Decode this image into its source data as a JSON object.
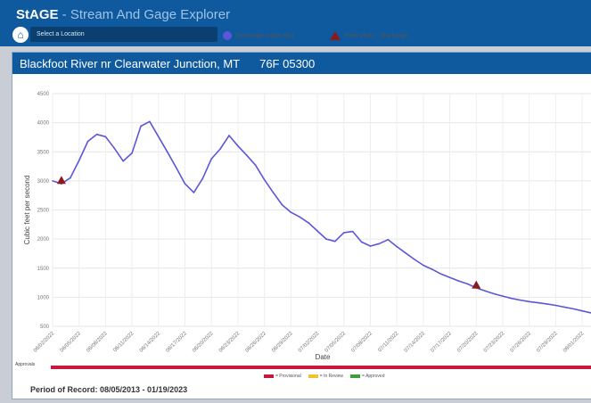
{
  "app": {
    "brand_strong": "StAGE",
    "brand_sub": " - Stream And Gage Explorer",
    "location_placeholder": "Select a Location",
    "home_icon": "home-icon"
  },
  "panel": {
    "site_name": "Blackfoot River nr Clearwater Junction, MT",
    "site_id": "76F 05300"
  },
  "legend": {
    "discharge": "Discharge (cubic ft/s)",
    "field_visits": "Field Visits - Discharge"
  },
  "status": {
    "approvals_label": "Approvals",
    "provisional": "= Provisional",
    "in_review": "= In Review",
    "approved": "= Approved",
    "colors": {
      "provisional": "#c8193c",
      "in_review": "#f2c12e",
      "approved": "#3aa13a"
    }
  },
  "period_of_record": "Period of Record: 08/05/2013 - 01/19/2023",
  "chart_data": {
    "type": "line",
    "xlabel": "Date",
    "ylabel": "Cubic feet per second",
    "ylim": [
      500,
      4500
    ],
    "yticks": [
      500,
      1000,
      1500,
      2000,
      2500,
      3000,
      3500,
      4000,
      4500
    ],
    "x_tick_labels": [
      "06/02/2022",
      "06/05/2022",
      "06/08/2022",
      "06/11/2022",
      "06/14/2022",
      "06/17/2022",
      "06/20/2022",
      "06/23/2022",
      "06/26/2022",
      "06/29/2022",
      "07/02/2022",
      "07/05/2022",
      "07/08/2022",
      "07/11/2022",
      "07/14/2022",
      "07/17/2022",
      "07/20/2022",
      "07/23/2022",
      "07/26/2022",
      "07/29/2022",
      "08/01/2022"
    ],
    "grid": true,
    "series": [
      {
        "name": "Discharge (cubic ft/s)",
        "color": "#5b57d8",
        "x": [
          "06/02/2022",
          "06/03/2022",
          "06/04/2022",
          "06/05/2022",
          "06/06/2022",
          "06/07/2022",
          "06/08/2022",
          "06/09/2022",
          "06/10/2022",
          "06/11/2022",
          "06/12/2022",
          "06/13/2022",
          "06/14/2022",
          "06/15/2022",
          "06/16/2022",
          "06/17/2022",
          "06/18/2022",
          "06/19/2022",
          "06/20/2022",
          "06/21/2022",
          "06/22/2022",
          "06/23/2022",
          "06/24/2022",
          "06/25/2022",
          "06/26/2022",
          "06/27/2022",
          "06/28/2022",
          "06/29/2022",
          "06/30/2022",
          "07/01/2022",
          "07/02/2022",
          "07/03/2022",
          "07/04/2022",
          "07/05/2022",
          "07/06/2022",
          "07/07/2022",
          "07/08/2022",
          "07/09/2022",
          "07/10/2022",
          "07/11/2022",
          "07/12/2022",
          "07/13/2022",
          "07/14/2022",
          "07/15/2022",
          "07/16/2022",
          "07/17/2022",
          "07/18/2022",
          "07/19/2022",
          "07/20/2022",
          "07/21/2022",
          "07/22/2022",
          "07/23/2022",
          "07/24/2022",
          "07/25/2022",
          "07/26/2022",
          "07/27/2022",
          "07/28/2022",
          "07/29/2022",
          "07/30/2022",
          "07/31/2022",
          "08/01/2022",
          "08/02/2022"
        ],
        "values": [
          3000,
          2950,
          3050,
          3350,
          3680,
          3800,
          3760,
          3560,
          3340,
          3480,
          3940,
          4020,
          3760,
          3500,
          3230,
          2950,
          2800,
          3040,
          3380,
          3550,
          3780,
          3600,
          3440,
          3270,
          3020,
          2800,
          2590,
          2460,
          2380,
          2280,
          2140,
          2000,
          1960,
          2110,
          2130,
          1950,
          1880,
          1920,
          1990,
          1870,
          1760,
          1650,
          1550,
          1480,
          1400,
          1340,
          1280,
          1230,
          1160,
          1110,
          1060,
          1020,
          980,
          950,
          925,
          905,
          885,
          860,
          830,
          800,
          765,
          730
        ]
      }
    ],
    "field_visits": [
      {
        "x": "06/03/2022",
        "y": 3010
      },
      {
        "x": "07/20/2022",
        "y": 1210
      }
    ]
  }
}
